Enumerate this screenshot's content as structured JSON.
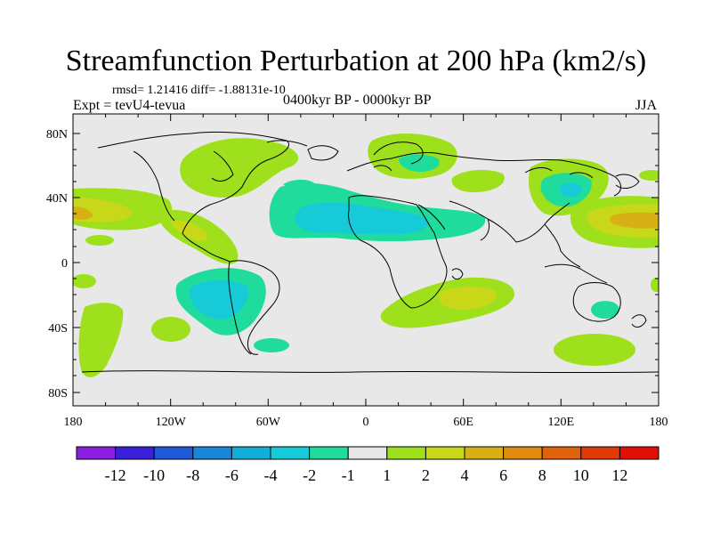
{
  "title": "Streamfunction Perturbation at 200 hPa (km2/s)",
  "stats_label": "rmsd= 1.21416 diff= -1.88131e-10",
  "experiment_label": "Expt = tevU4-tevua",
  "period_label": "0400kyr BP - 0000kyr BP",
  "season_label": "JJA",
  "lat_ticks": [
    "80N",
    "40N",
    "0",
    "40S",
    "80S"
  ],
  "lon_ticks": [
    "180",
    "120W",
    "60W",
    "0",
    "60E",
    "120E",
    "180"
  ],
  "colorbar": {
    "labels": [
      "-12",
      "-10",
      "-8",
      "-6",
      "-4",
      "-2",
      "-1",
      "1",
      "2",
      "4",
      "6",
      "8",
      "10",
      "12"
    ],
    "colors": [
      "#8b1fe0",
      "#3a21d9",
      "#1f58d8",
      "#1a86d8",
      "#12aed8",
      "#16cad8",
      "#1fdc9c",
      "#e8e8e8",
      "#9ee01c",
      "#c8d818",
      "#d6b014",
      "#e08c10",
      "#e0620c",
      "#e03a0a",
      "#e01006"
    ]
  },
  "colors": {
    "background": "#e8e8e8",
    "positive_1": "#9ee01c",
    "positive_2": "#c8d818",
    "positive_3": "#d6b014",
    "negative_1": "#1fdc9c",
    "negative_2": "#16cad8"
  }
}
